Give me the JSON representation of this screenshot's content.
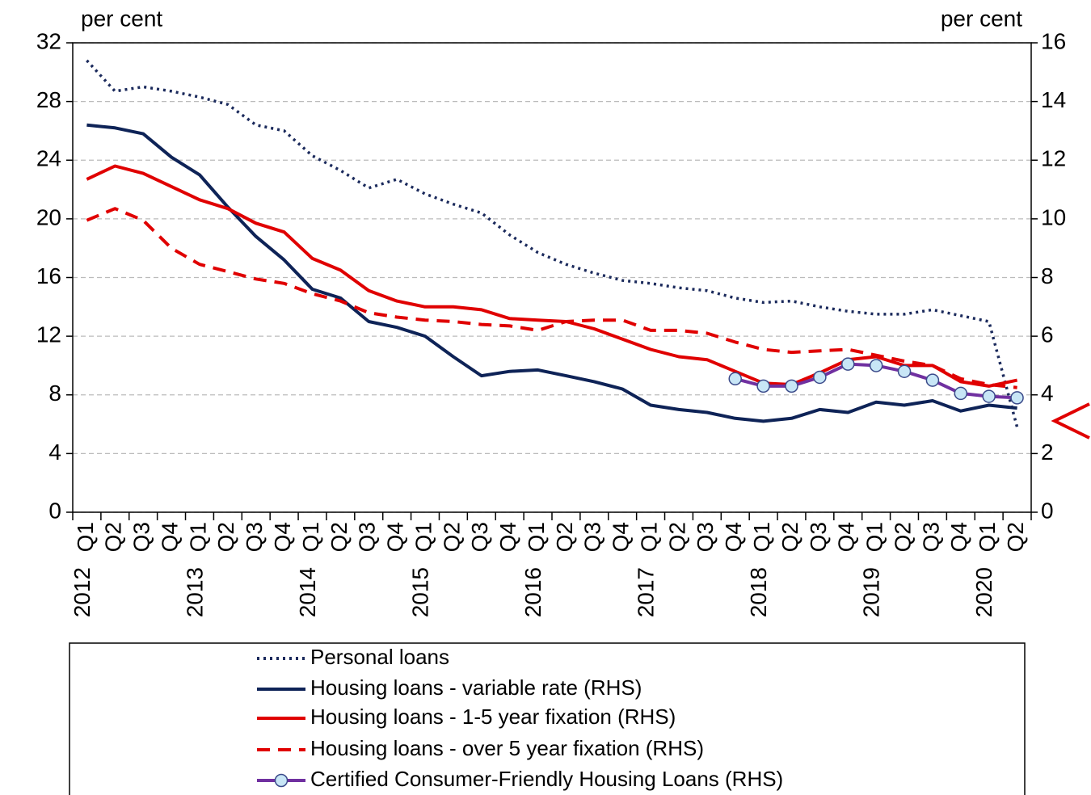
{
  "chart_data": {
    "type": "line",
    "y_label": "per cent",
    "y2_label": "per cent",
    "categories": [
      "Q1",
      "Q2",
      "Q3",
      "Q4",
      "Q1",
      "Q2",
      "Q3",
      "Q4",
      "Q1",
      "Q2",
      "Q3",
      "Q4",
      "Q1",
      "Q2",
      "Q3",
      "Q4",
      "Q1",
      "Q2",
      "Q3",
      "Q4",
      "Q1",
      "Q2",
      "Q3",
      "Q4",
      "Q1",
      "Q2",
      "Q3",
      "Q4",
      "Q1",
      "Q2",
      "Q3",
      "Q4",
      "Q1",
      "Q2"
    ],
    "category_groups": [
      "2012",
      null,
      null,
      null,
      "2013",
      null,
      null,
      null,
      "2014",
      null,
      null,
      null,
      "2015",
      null,
      null,
      null,
      "2016",
      null,
      null,
      null,
      "2017",
      null,
      null,
      null,
      "2018",
      null,
      null,
      null,
      "2019",
      null,
      null,
      null,
      "2020",
      null
    ],
    "ylim": [
      0,
      32
    ],
    "yticks": [
      0,
      4,
      8,
      12,
      16,
      20,
      24,
      28,
      32
    ],
    "y2lim": [
      0,
      16
    ],
    "y2ticks": [
      0,
      2,
      4,
      6,
      8,
      10,
      12,
      14,
      16
    ],
    "grid": true,
    "series": [
      {
        "name": "Personal loans",
        "color": "#1b2a5c",
        "dash": "dotted",
        "axis": "y",
        "values": [
          30.8,
          28.7,
          29.0,
          28.7,
          28.3,
          27.8,
          26.4,
          26.0,
          24.3,
          23.3,
          22.1,
          22.7,
          21.7,
          21.0,
          20.4,
          18.9,
          17.7,
          16.9,
          16.3,
          15.8,
          15.6,
          15.3,
          15.1,
          14.6,
          14.3,
          14.4,
          14.0,
          13.7,
          13.5,
          13.5,
          13.8,
          13.4,
          13.0,
          5.8
        ]
      },
      {
        "name": "Housing loans - variable rate (RHS)",
        "color": "#0e2357",
        "dash": "solid",
        "axis": "y2",
        "values": [
          13.2,
          13.1,
          12.9,
          12.1,
          11.5,
          10.4,
          9.4,
          8.6,
          7.6,
          7.3,
          6.5,
          6.3,
          6.0,
          5.3,
          4.65,
          4.8,
          4.85,
          4.65,
          4.45,
          4.2,
          3.65,
          3.5,
          3.4,
          3.2,
          3.1,
          3.2,
          3.5,
          3.4,
          3.75,
          3.65,
          3.8,
          3.45,
          3.65,
          3.55
        ]
      },
      {
        "name": "Housing loans - 1-5 year fixation (RHS)",
        "color": "#e00000",
        "dash": "solid",
        "axis": "y2",
        "values": [
          11.35,
          11.8,
          11.55,
          11.1,
          10.65,
          10.35,
          9.85,
          9.55,
          8.65,
          8.25,
          7.55,
          7.2,
          7.0,
          7.0,
          6.9,
          6.6,
          6.55,
          6.5,
          6.25,
          5.9,
          5.55,
          5.3,
          5.2,
          4.8,
          4.4,
          4.35,
          4.75,
          5.2,
          5.3,
          5.0,
          5.0,
          4.45,
          4.3,
          4.5
        ]
      },
      {
        "name": "Housing loans - over 5 year fixation (RHS)",
        "color": "#e00000",
        "dash": "dashed",
        "axis": "y2",
        "values": [
          9.95,
          10.35,
          9.95,
          9.0,
          8.45,
          8.2,
          7.95,
          7.8,
          7.45,
          7.2,
          6.8,
          6.65,
          6.55,
          6.5,
          6.4,
          6.35,
          6.2,
          6.5,
          6.55,
          6.55,
          6.2,
          6.2,
          6.1,
          5.8,
          5.55,
          5.45,
          5.5,
          5.55,
          5.35,
          5.15,
          5.0,
          4.55,
          4.35,
          4.25
        ]
      },
      {
        "name": "Certified Consumer-Friendly Housing Loans (RHS)",
        "color": "#7030a0",
        "dash": "solid",
        "axis": "y2",
        "marker": "circle",
        "marker_color": "#c8e6f6",
        "values": [
          null,
          null,
          null,
          null,
          null,
          null,
          null,
          null,
          null,
          null,
          null,
          null,
          null,
          null,
          null,
          null,
          null,
          null,
          null,
          null,
          null,
          null,
          null,
          4.55,
          4.3,
          4.3,
          4.6,
          5.05,
          5.0,
          4.8,
          4.5,
          4.05,
          3.95,
          3.9
        ]
      }
    ]
  }
}
